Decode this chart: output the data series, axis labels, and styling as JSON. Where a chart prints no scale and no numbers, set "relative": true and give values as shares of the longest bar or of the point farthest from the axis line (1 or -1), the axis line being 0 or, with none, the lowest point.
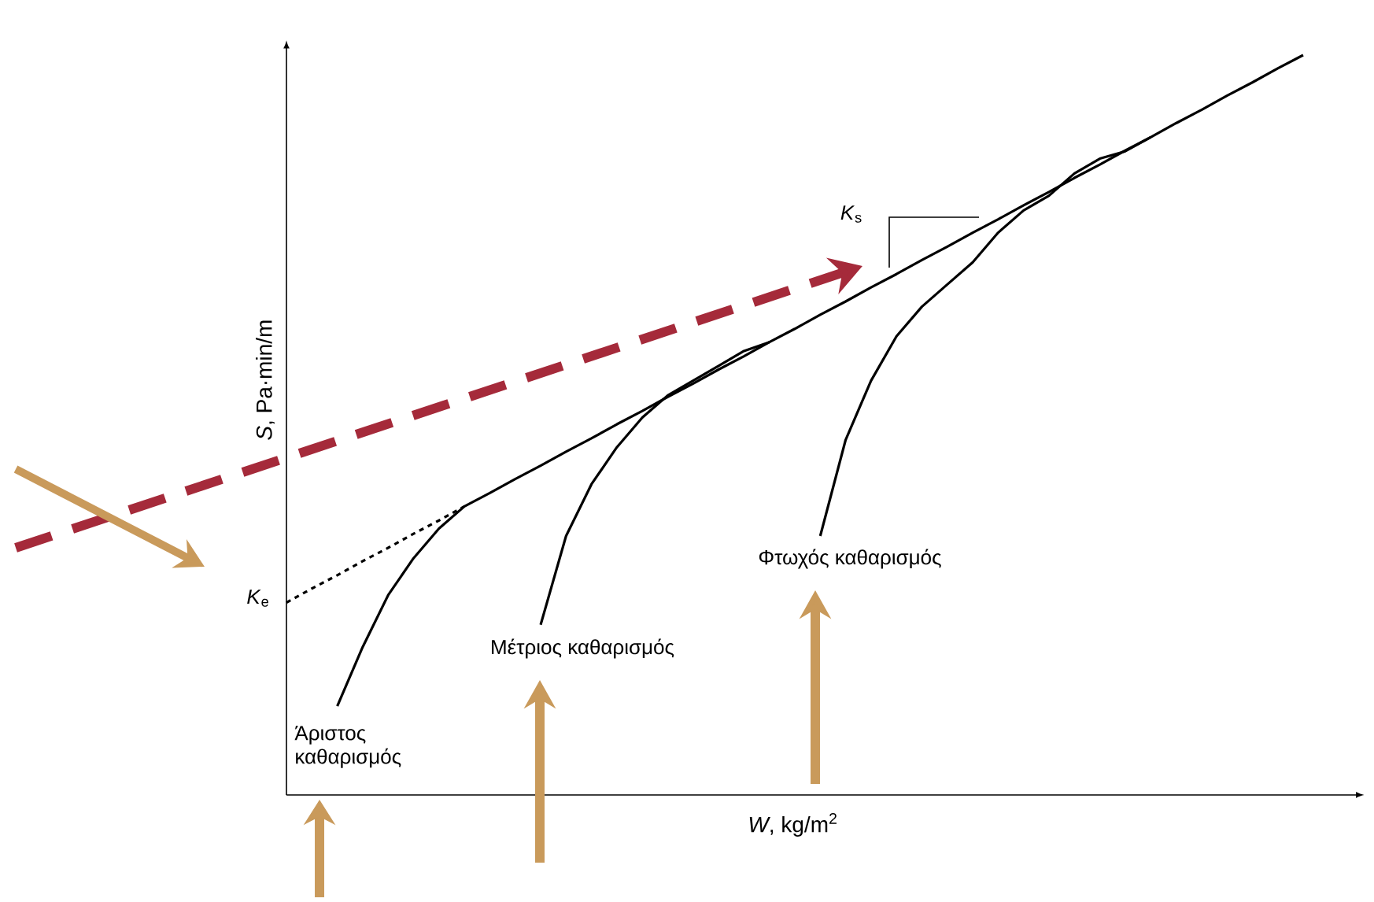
{
  "chart_data": {
    "type": "line",
    "relative": true,
    "xlabel": "*W*, kg/m$^{2}$",
    "ylabel": "*S*, Pa·min/m",
    "categories": [
      null,
      null,
      null,
      null,
      null,
      null,
      null,
      null,
      null,
      null,
      null,
      null,
      null,
      null,
      null,
      null,
      null,
      null,
      null,
      null,
      null,
      null,
      null,
      null,
      null,
      null,
      null,
      null,
      null,
      null,
      null,
      null,
      null,
      null,
      null,
      null,
      null,
      null,
      null,
      null,
      null
    ],
    "series": [
      {
        "color": "#000000",
        "line_style": "dashed",
        "values": [
          0.26,
          0.279,
          0.297,
          0.316,
          0.334,
          0.353,
          0.371,
          0.39,
          null,
          null,
          null,
          null,
          null,
          null,
          null,
          null,
          null,
          null,
          null,
          null,
          null,
          null,
          null,
          null,
          null,
          null,
          null,
          null,
          null,
          null,
          null,
          null,
          null,
          null,
          null,
          null,
          null,
          null,
          null,
          null,
          null
        ]
      },
      {
        "color": "#000000",
        "values": [
          null,
          null,
          0.12,
          0.2,
          0.27,
          0.32,
          0.36,
          0.39,
          0.408,
          0.427,
          0.445,
          0.464,
          0.482,
          0.501,
          0.519,
          0.538,
          0.556,
          0.575,
          0.593,
          0.612,
          0.63,
          0.649,
          0.667,
          0.686,
          0.704,
          0.723,
          0.741,
          0.76,
          0.778,
          0.797,
          0.815,
          0.834,
          0.852,
          0.871,
          0.889,
          0.908,
          0.926,
          0.945,
          0.963,
          0.982,
          1.0
        ]
      },
      {
        "color": "#000000",
        "values": [
          null,
          null,
          null,
          null,
          null,
          null,
          null,
          null,
          null,
          null,
          0.23,
          0.35,
          0.42,
          0.47,
          0.51,
          0.54,
          0.56,
          0.58,
          0.6,
          0.612,
          null,
          null,
          null,
          null,
          null,
          null,
          null,
          null,
          null,
          null,
          null,
          null,
          null,
          null,
          null,
          null,
          null,
          null,
          null,
          null,
          null
        ]
      },
      {
        "color": "#000000",
        "values": [
          null,
          null,
          null,
          null,
          null,
          null,
          null,
          null,
          null,
          null,
          null,
          null,
          null,
          null,
          null,
          null,
          null,
          null,
          null,
          null,
          null,
          0.35,
          0.48,
          0.56,
          0.62,
          0.66,
          0.69,
          0.72,
          0.76,
          0.79,
          0.81,
          0.84,
          0.86,
          0.87,
          0.889,
          null,
          null,
          null,
          null,
          null,
          null
        ]
      }
    ],
    "annotations": [
      "*K*$_{s}$",
      "*K*$_{e}$",
      "Άριστος καθαρισμός",
      "Μέτριος καθαρισμός",
      "Φτωχός καθαρισμός"
    ]
  }
}
